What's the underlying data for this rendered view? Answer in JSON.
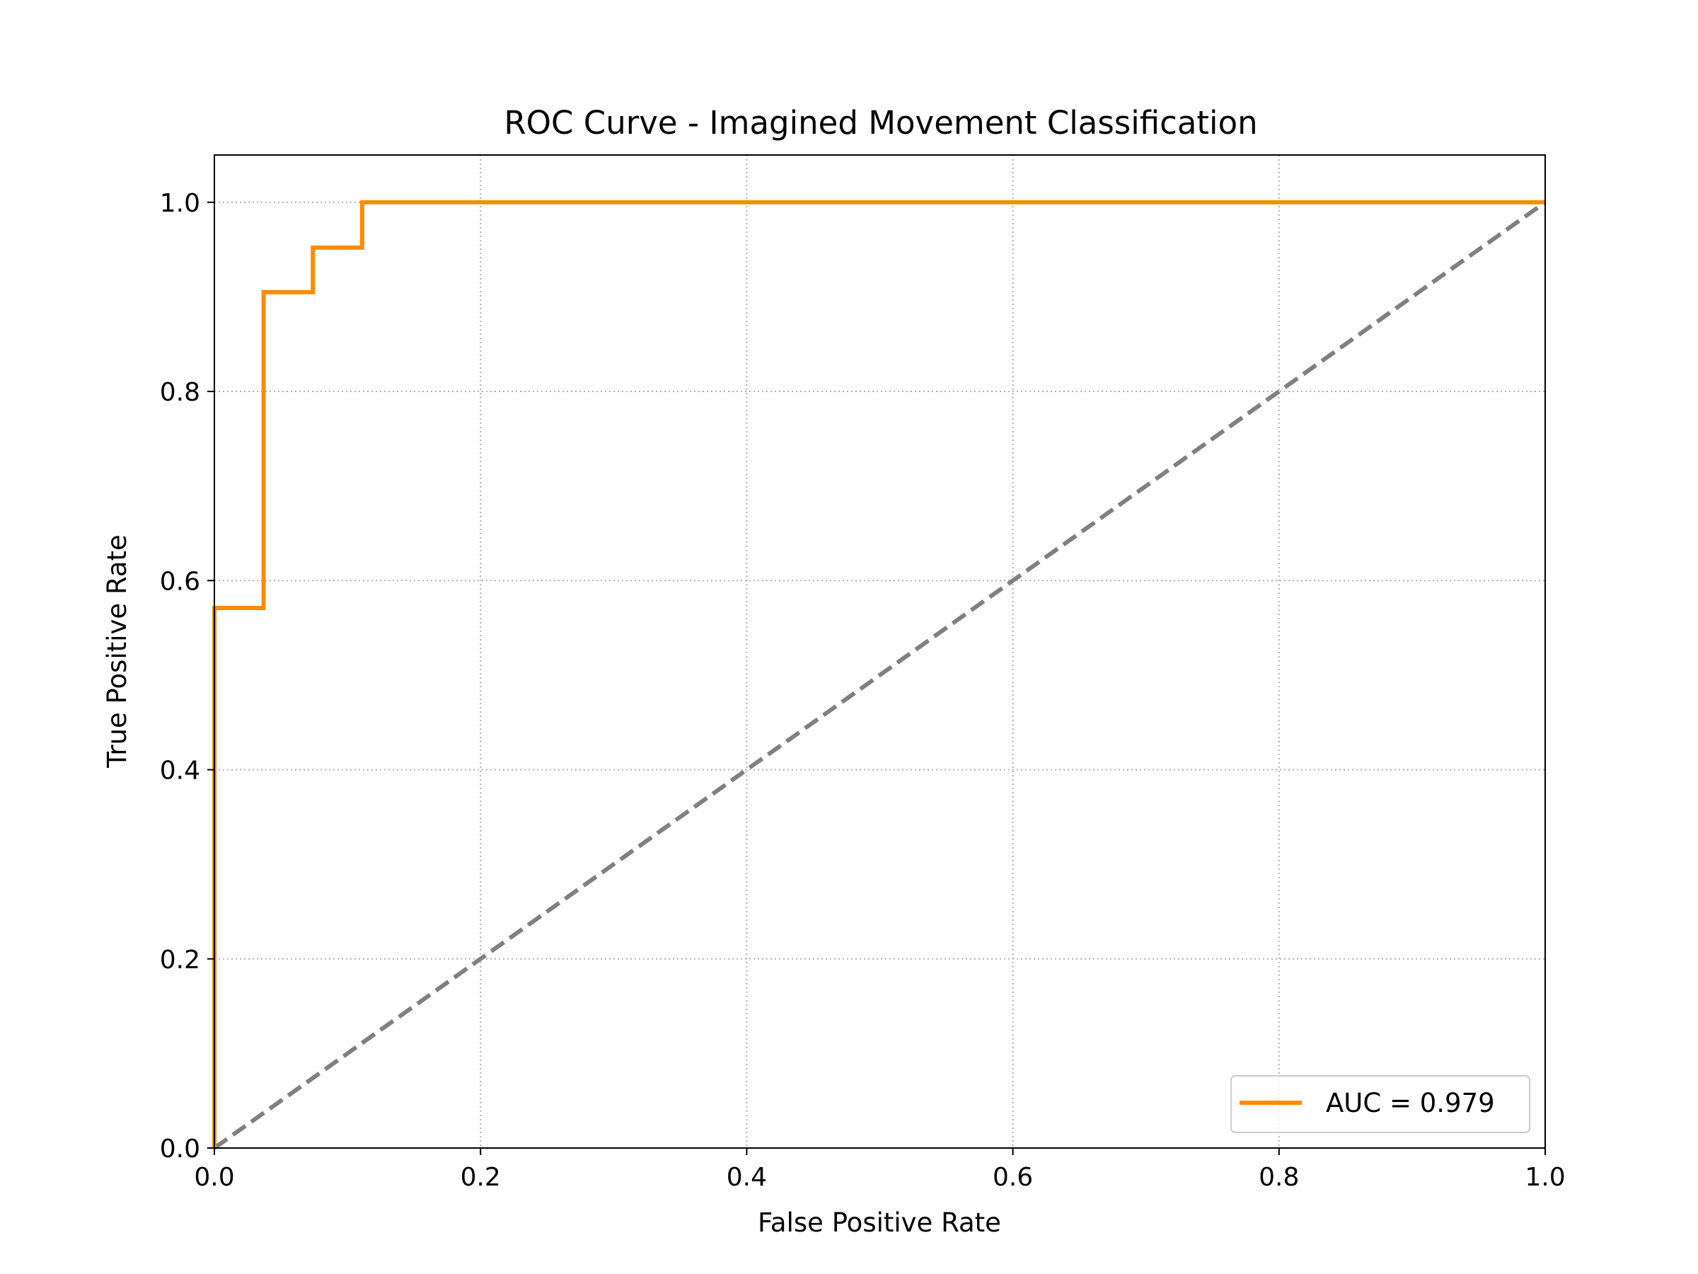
{
  "chart_data": {
    "type": "line",
    "title": "ROC Curve - Imagined Movement Classification",
    "xlabel": "False Positive Rate",
    "ylabel": "True Positive Rate",
    "xlim": [
      0.0,
      1.0
    ],
    "ylim": [
      0.0,
      1.05
    ],
    "xticks": [
      "0.0",
      "0.2",
      "0.4",
      "0.6",
      "0.8",
      "1.0"
    ],
    "yticks": [
      "0.0",
      "0.2",
      "0.4",
      "0.6",
      "0.8",
      "1.0"
    ],
    "xtick_values": [
      0.0,
      0.2,
      0.4,
      0.6,
      0.8,
      1.0
    ],
    "ytick_values": [
      0.0,
      0.2,
      0.4,
      0.6,
      0.8,
      1.0
    ],
    "grid": true,
    "legend_position": "lower-right",
    "series": [
      {
        "name": "AUC = 0.979",
        "color": "#ff8c00",
        "style": "solid",
        "x": [
          0.0,
          0.0,
          0.037,
          0.037,
          0.074,
          0.074,
          0.111,
          0.111,
          1.0
        ],
        "y": [
          0.0,
          0.571,
          0.571,
          0.905,
          0.905,
          0.952,
          0.952,
          1.0,
          1.0
        ]
      },
      {
        "color": "#808080",
        "style": "dashed",
        "x": [
          0.0,
          1.0
        ],
        "y": [
          0.0,
          1.0
        ]
      }
    ]
  }
}
